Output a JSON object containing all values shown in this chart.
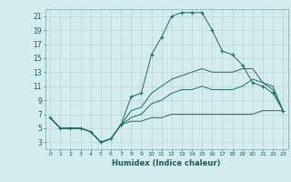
{
  "xlabel": "Humidex (Indice chaleur)",
  "bg_color": "#d4ecec",
  "grid_color": "#b8d4d4",
  "line_color": "#1a6e60",
  "xlim": [
    -0.5,
    23.5
  ],
  "ylim": [
    2,
    22
  ],
  "xticks": [
    0,
    1,
    2,
    3,
    4,
    5,
    6,
    7,
    8,
    9,
    10,
    11,
    12,
    13,
    14,
    15,
    16,
    17,
    18,
    19,
    20,
    21,
    22,
    23
  ],
  "yticks": [
    3,
    5,
    7,
    9,
    11,
    13,
    15,
    17,
    19,
    21
  ],
  "series": [
    {
      "x": [
        0,
        1,
        2,
        3,
        4,
        5,
        6,
        7,
        8,
        9,
        10,
        11,
        12,
        13,
        14,
        15,
        16,
        17,
        18,
        19,
        20,
        21,
        22,
        23
      ],
      "y": [
        6.5,
        5,
        5,
        5,
        4.5,
        3,
        3.5,
        5.5,
        9.5,
        10,
        15.5,
        18,
        21,
        21.5,
        21.5,
        21.5,
        19,
        16,
        15.5,
        14,
        11.5,
        11,
        10,
        7.5
      ],
      "marker": "+"
    },
    {
      "x": [
        0,
        1,
        2,
        3,
        4,
        5,
        6,
        7,
        8,
        9,
        10,
        11,
        12,
        13,
        14,
        15,
        16,
        17,
        18,
        19,
        20,
        21,
        22,
        23
      ],
      "y": [
        6.5,
        5,
        5,
        5,
        4.5,
        3,
        3.5,
        5.5,
        7.5,
        8,
        10,
        11,
        12,
        12.5,
        13,
        13.5,
        13,
        13,
        13,
        13.5,
        13.5,
        11.5,
        10.5,
        7.5
      ],
      "marker": null
    },
    {
      "x": [
        0,
        1,
        2,
        3,
        4,
        5,
        6,
        7,
        8,
        9,
        10,
        11,
        12,
        13,
        14,
        15,
        16,
        17,
        18,
        19,
        20,
        21,
        22,
        23
      ],
      "y": [
        6.5,
        5,
        5,
        5,
        4.5,
        3,
        3.5,
        5.5,
        6.5,
        7,
        8.5,
        9,
        10,
        10.5,
        10.5,
        11,
        10.5,
        10.5,
        10.5,
        11,
        12,
        11.5,
        11,
        7.5
      ],
      "marker": null
    },
    {
      "x": [
        0,
        1,
        2,
        3,
        4,
        5,
        6,
        7,
        8,
        9,
        10,
        11,
        12,
        13,
        14,
        15,
        16,
        17,
        18,
        19,
        20,
        21,
        22,
        23
      ],
      "y": [
        6.5,
        5,
        5,
        5,
        4.5,
        3,
        3.5,
        5.5,
        6,
        6,
        6.5,
        6.5,
        7,
        7,
        7,
        7,
        7,
        7,
        7,
        7,
        7,
        7.5,
        7.5,
        7.5
      ],
      "marker": null
    }
  ]
}
